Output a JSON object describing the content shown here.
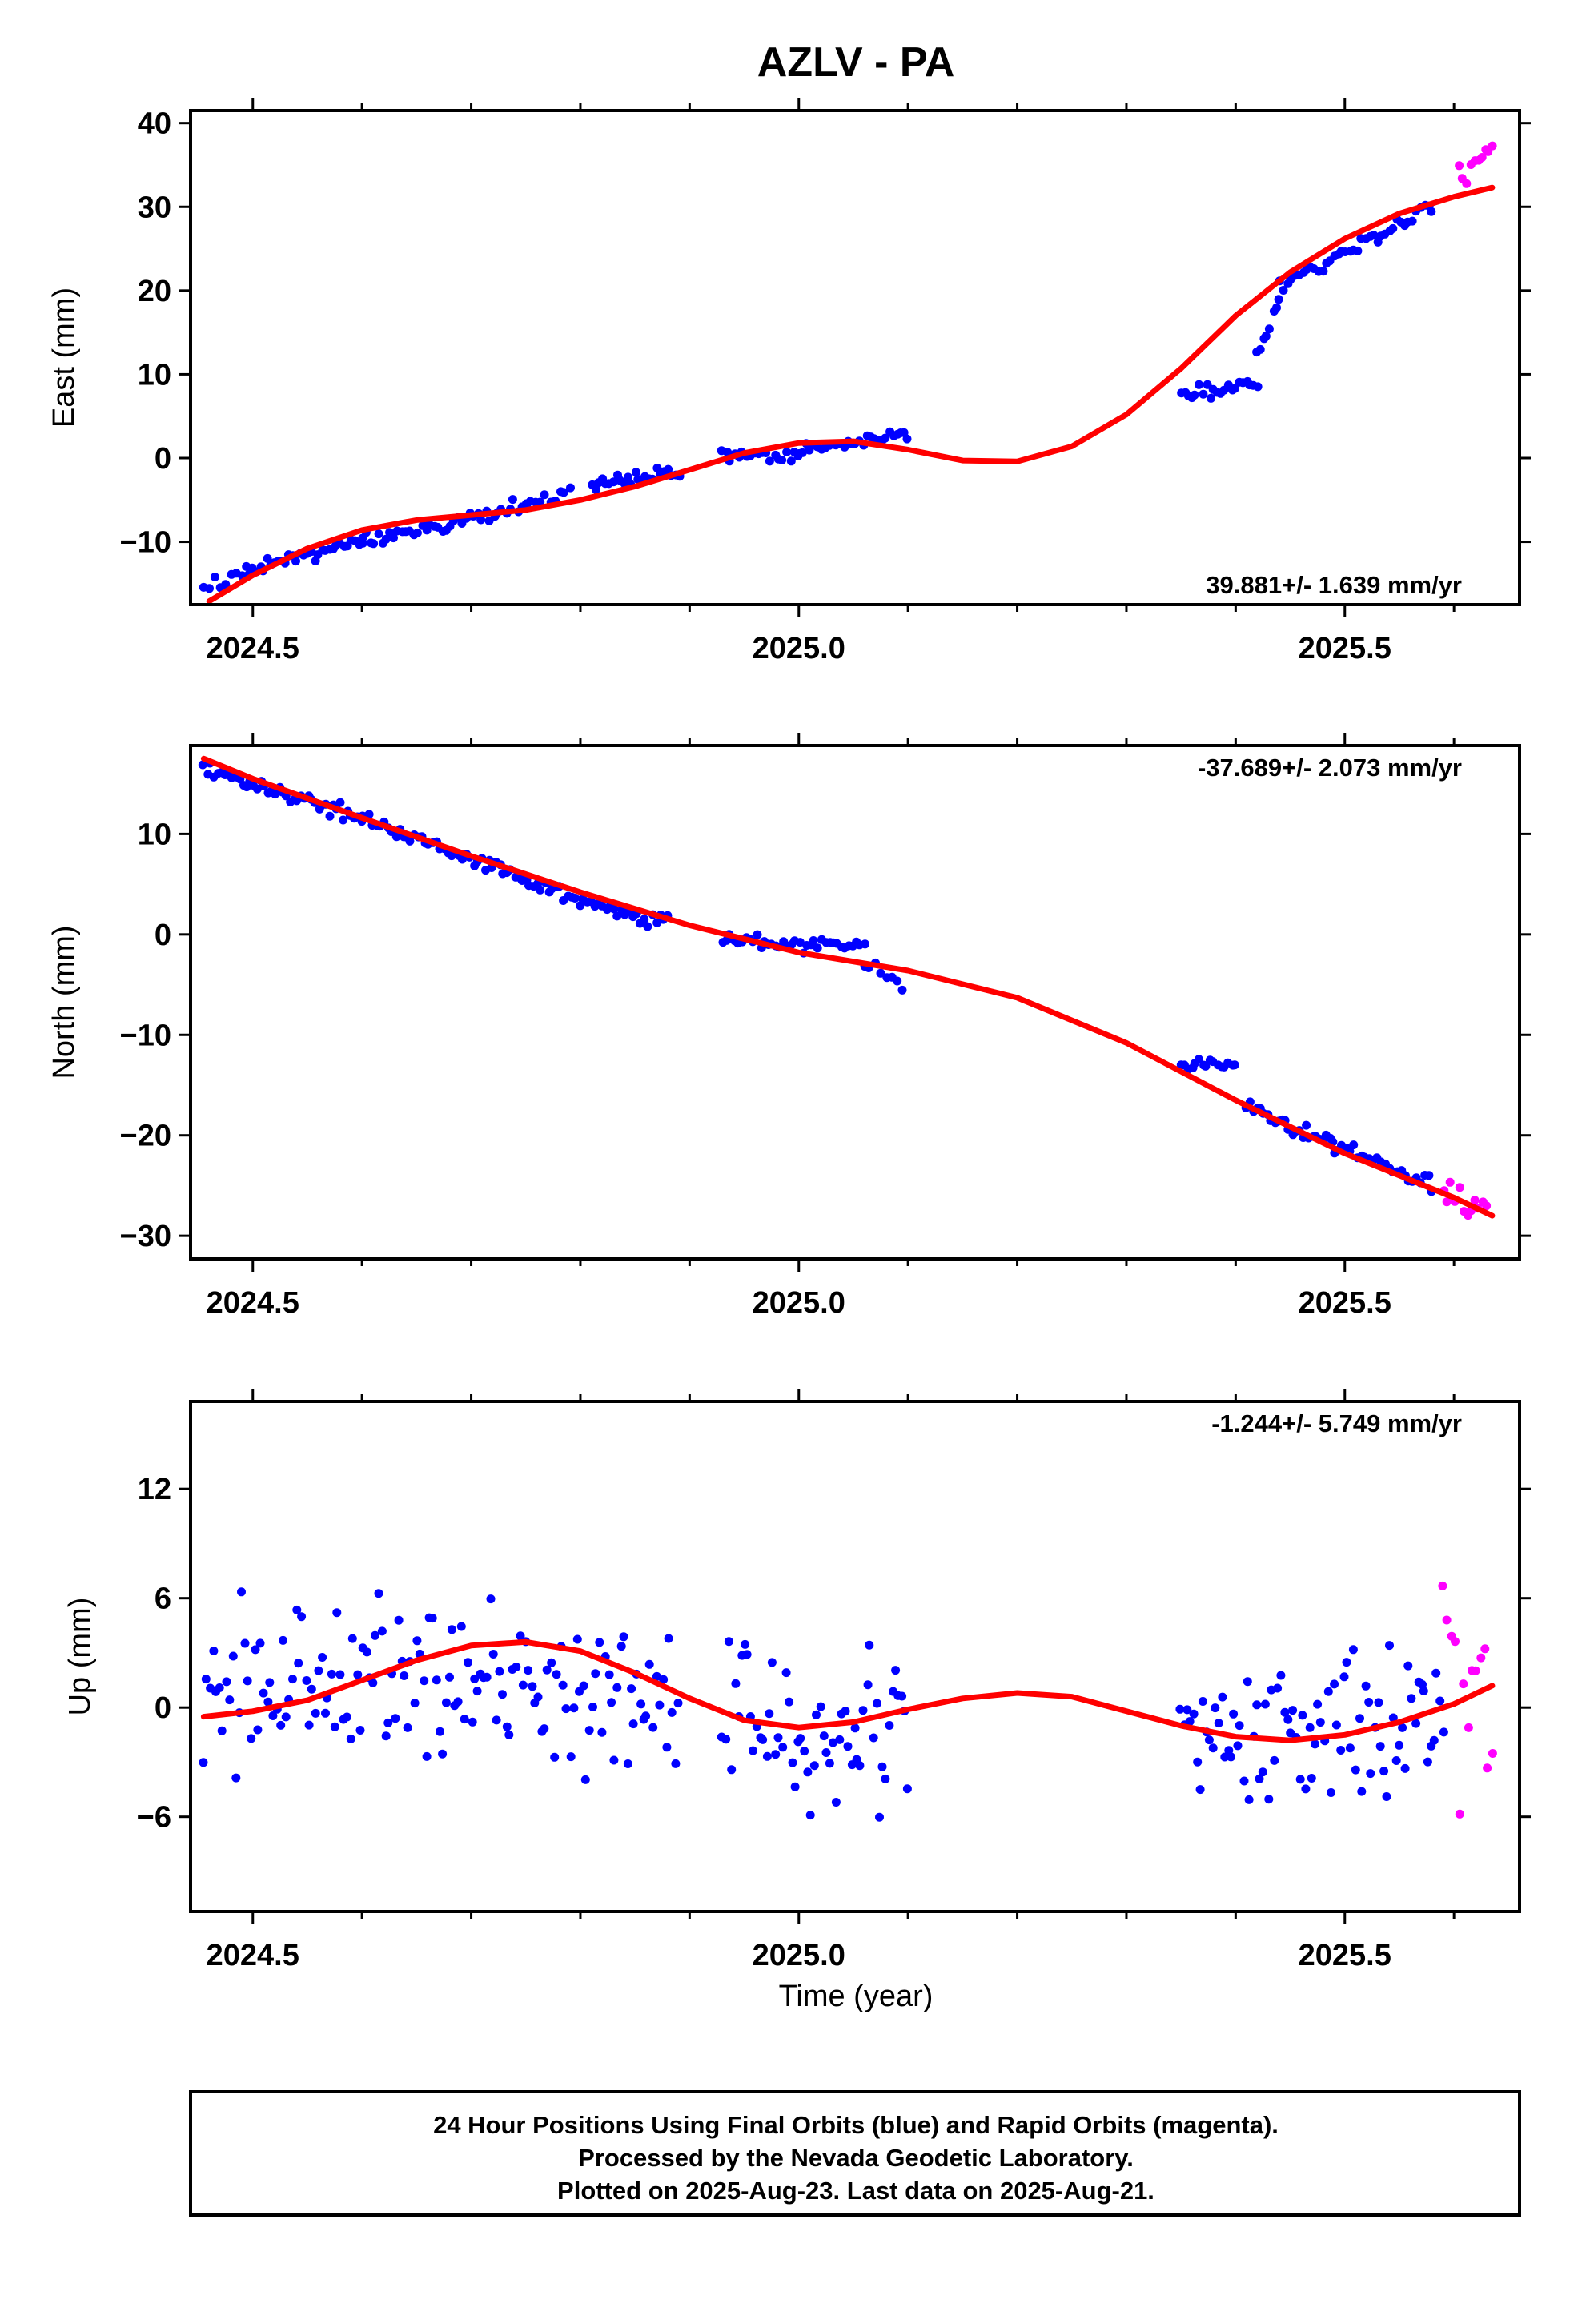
{
  "title": "AZLV - PA",
  "xlabel": "Time (year)",
  "colors": {
    "final": "#0000ff",
    "rapid": "#ff00ff",
    "model": "#ff0000",
    "axes": "#000000"
  },
  "footer": {
    "lines": [
      "24 Hour Positions Using Final Orbits (blue) and Rapid Orbits (magenta).",
      "Processed by the Nevada Geodetic Laboratory.",
      "Plotted on 2025-Aug-23. Last data on 2025-Aug-21."
    ]
  },
  "chart_data": [
    {
      "type": "scatter",
      "component": "east",
      "ylabel": "East (mm)",
      "rate_label": "39.881+/- 1.639 mm/yr",
      "xlim": [
        2024.443,
        2025.66
      ],
      "ylim": [
        -17.5,
        41.5
      ],
      "xticks": [
        2024.5,
        2025.0,
        2025.5
      ],
      "yticks": [
        -10,
        0,
        10,
        20,
        30,
        40
      ],
      "model": [
        [
          2024.46,
          -17.1
        ],
        [
          2024.5,
          -14.0
        ],
        [
          2024.55,
          -10.8
        ],
        [
          2024.6,
          -8.6
        ],
        [
          2024.65,
          -7.4
        ],
        [
          2024.7,
          -6.8
        ],
        [
          2024.75,
          -6.2
        ],
        [
          2024.8,
          -5.0
        ],
        [
          2024.85,
          -3.4
        ],
        [
          2024.9,
          -1.4
        ],
        [
          2024.95,
          0.6
        ],
        [
          2025.0,
          1.8
        ],
        [
          2025.05,
          2.0
        ],
        [
          2025.1,
          1.0
        ],
        [
          2025.15,
          -0.3
        ],
        [
          2025.2,
          -0.4
        ],
        [
          2025.25,
          1.4
        ],
        [
          2025.3,
          5.2
        ],
        [
          2025.35,
          10.7
        ],
        [
          2025.4,
          17.0
        ],
        [
          2025.45,
          22.2
        ],
        [
          2025.5,
          26.2
        ],
        [
          2025.55,
          29.2
        ],
        [
          2025.6,
          31.2
        ],
        [
          2025.635,
          32.3
        ]
      ],
      "segments": [
        {
          "kind": "final",
          "x0": 2024.455,
          "x1": 2024.49,
          "n": 8,
          "base": [
            -15.5,
            -13.5
          ],
          "noise": 1.5
        },
        {
          "kind": "final",
          "x0": 2024.49,
          "x1": 2024.6,
          "n": 34,
          "base": [
            -13.5,
            -10.0
          ],
          "noise": 1.5
        },
        {
          "kind": "final",
          "x0": 2024.6,
          "x1": 2024.75,
          "n": 42,
          "base": [
            -10.0,
            -5.8
          ],
          "noise": 1.3
        },
        {
          "kind": "final",
          "x0": 2024.75,
          "x1": 2024.79,
          "n": 10,
          "base": [
            -5.5,
            -4.5
          ],
          "noise": 1.0
        },
        {
          "kind": "final",
          "x0": 2024.81,
          "x1": 2024.89,
          "n": 25,
          "base": [
            -3.5,
            -1.5
          ],
          "noise": 1.4
        },
        {
          "kind": "final",
          "x0": 2024.93,
          "x1": 2025.0,
          "n": 20,
          "base": [
            0.3,
            0.0
          ],
          "noise": 1.0
        },
        {
          "kind": "final",
          "x0": 2025.0,
          "x1": 2025.1,
          "n": 30,
          "base": [
            1.0,
            2.8
          ],
          "noise": 1.2
        },
        {
          "kind": "final",
          "x0": 2025.35,
          "x1": 2025.42,
          "n": 22,
          "base": [
            7.5,
            9.0
          ],
          "noise": 1.5
        },
        {
          "kind": "final",
          "x0": 2025.42,
          "x1": 2025.44,
          "n": 8,
          "base": [
            12.0,
            19.0
          ],
          "noise": 1.0
        },
        {
          "kind": "final",
          "x0": 2025.44,
          "x1": 2025.58,
          "n": 40,
          "base": [
            20.5,
            30.0
          ],
          "noise": 1.2
        },
        {
          "kind": "rapid",
          "x0": 2025.605,
          "x1": 2025.635,
          "n": 10,
          "base": [
            34.0,
            37.5
          ],
          "noise": 2.2
        }
      ]
    },
    {
      "type": "scatter",
      "component": "north",
      "ylabel": "North (mm)",
      "rate_label": "-37.689+/- 2.073 mm/yr",
      "xlim": [
        2024.443,
        2025.66
      ],
      "ylim": [
        -32.3,
        18.8
      ],
      "xticks": [
        2024.5,
        2025.0,
        2025.5
      ],
      "yticks": [
        -30,
        -20,
        -10,
        0,
        10
      ],
      "model": [
        [
          2024.455,
          17.5
        ],
        [
          2024.5,
          15.5
        ],
        [
          2024.6,
          11.6
        ],
        [
          2024.7,
          7.8
        ],
        [
          2024.8,
          4.2
        ],
        [
          2024.9,
          0.9
        ],
        [
          2025.0,
          -1.8
        ],
        [
          2025.1,
          -3.6
        ],
        [
          2025.2,
          -6.3
        ],
        [
          2025.3,
          -10.8
        ],
        [
          2025.4,
          -16.5
        ],
        [
          2025.5,
          -21.8
        ],
        [
          2025.6,
          -26.2
        ],
        [
          2025.635,
          -28.0
        ]
      ],
      "segments": [
        {
          "kind": "final",
          "x0": 2024.455,
          "x1": 2024.6,
          "n": 45,
          "base": [
            16.5,
            11.5
          ],
          "noise": 1.1
        },
        {
          "kind": "final",
          "x0": 2024.6,
          "x1": 2024.75,
          "n": 45,
          "base": [
            11.5,
            5.5
          ],
          "noise": 1.1
        },
        {
          "kind": "final",
          "x0": 2024.75,
          "x1": 2024.88,
          "n": 38,
          "base": [
            5.0,
            1.2
          ],
          "noise": 1.2
        },
        {
          "kind": "final",
          "x0": 2024.93,
          "x1": 2025.06,
          "n": 38,
          "base": [
            -0.5,
            -1.2
          ],
          "noise": 1.3
        },
        {
          "kind": "final",
          "x0": 2025.06,
          "x1": 2025.095,
          "n": 8,
          "base": [
            -2.5,
            -5.5
          ],
          "noise": 1.2
        },
        {
          "kind": "final",
          "x0": 2025.35,
          "x1": 2025.4,
          "n": 16,
          "base": [
            -13.2,
            -12.5
          ],
          "noise": 1.1
        },
        {
          "kind": "final",
          "x0": 2025.41,
          "x1": 2025.49,
          "n": 26,
          "base": [
            -17.0,
            -20.8
          ],
          "noise": 1.2
        },
        {
          "kind": "final",
          "x0": 2025.49,
          "x1": 2025.58,
          "n": 26,
          "base": [
            -21.0,
            -25.0
          ],
          "noise": 1.2
        },
        {
          "kind": "rapid",
          "x0": 2025.59,
          "x1": 2025.63,
          "n": 12,
          "base": [
            -26.0,
            -28.0
          ],
          "noise": 2.8
        }
      ]
    },
    {
      "type": "scatter",
      "component": "up",
      "ylabel": "Up (mm)",
      "rate_label": "-1.244+/- 5.749 mm/yr",
      "xlim": [
        2024.443,
        2025.66
      ],
      "ylim": [
        -11.2,
        16.8
      ],
      "xticks": [
        2024.5,
        2025.0,
        2025.5
      ],
      "yticks": [
        -6,
        0,
        6,
        12
      ],
      "model": [
        [
          2024.455,
          -0.5
        ],
        [
          2024.5,
          -0.2
        ],
        [
          2024.55,
          0.4
        ],
        [
          2024.6,
          1.5
        ],
        [
          2024.65,
          2.6
        ],
        [
          2024.7,
          3.4
        ],
        [
          2024.75,
          3.6
        ],
        [
          2024.8,
          3.1
        ],
        [
          2024.85,
          1.9
        ],
        [
          2024.9,
          0.5
        ],
        [
          2024.95,
          -0.7
        ],
        [
          2025.0,
          -1.1
        ],
        [
          2025.05,
          -0.8
        ],
        [
          2025.1,
          -0.1
        ],
        [
          2025.15,
          0.5
        ],
        [
          2025.2,
          0.8
        ],
        [
          2025.25,
          0.6
        ],
        [
          2025.3,
          -0.2
        ],
        [
          2025.35,
          -1.0
        ],
        [
          2025.4,
          -1.6
        ],
        [
          2025.45,
          -1.8
        ],
        [
          2025.5,
          -1.5
        ],
        [
          2025.55,
          -0.8
        ],
        [
          2025.6,
          0.2
        ],
        [
          2025.635,
          1.2
        ]
      ],
      "segments": [
        {
          "kind": "final",
          "x0": 2024.455,
          "x1": 2024.89,
          "n": 150,
          "base": [
            1.0,
            1.0
          ],
          "noise": 7.0
        },
        {
          "kind": "final",
          "x0": 2024.93,
          "x1": 2025.1,
          "n": 60,
          "base": [
            -1.0,
            -1.0
          ],
          "noise": 6.5
        },
        {
          "kind": "final",
          "x0": 2025.35,
          "x1": 2025.59,
          "n": 85,
          "base": [
            -1.5,
            -1.0
          ],
          "noise": 6.5
        },
        {
          "kind": "rapid",
          "x0": 2025.59,
          "x1": 2025.635,
          "n": 13,
          "base": [
            1.0,
            1.0
          ],
          "noise": 8.5
        }
      ]
    }
  ]
}
